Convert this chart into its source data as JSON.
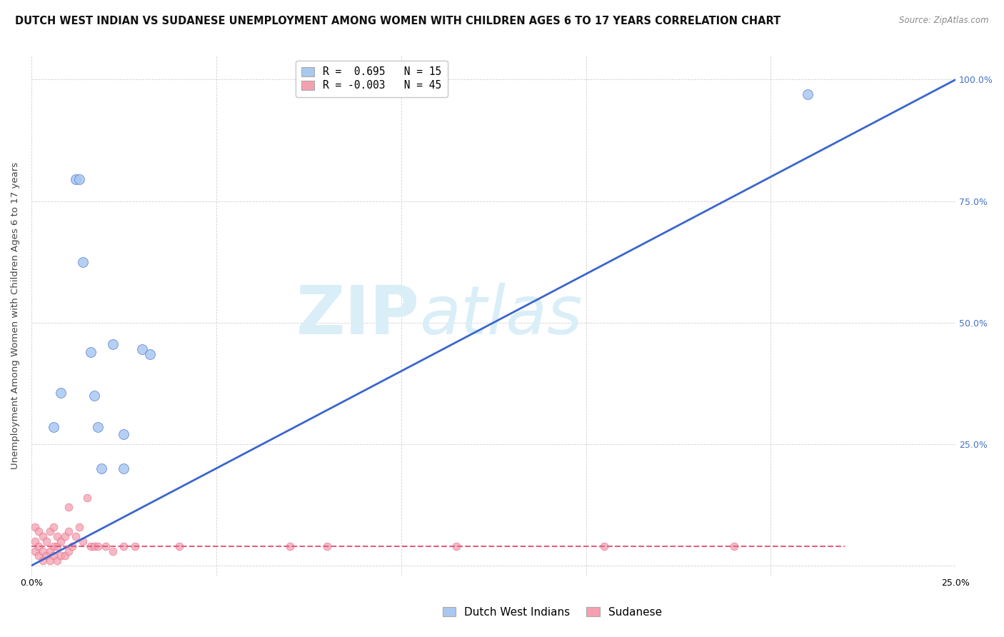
{
  "title": "DUTCH WEST INDIAN VS SUDANESE UNEMPLOYMENT AMONG WOMEN WITH CHILDREN AGES 6 TO 17 YEARS CORRELATION CHART",
  "source": "Source: ZipAtlas.com",
  "ylabel": "Unemployment Among Women with Children Ages 6 to 17 years",
  "xlim": [
    0.0,
    0.25
  ],
  "ylim": [
    -0.02,
    1.05
  ],
  "legend1_label": "R =  0.695   N = 15",
  "legend2_label": "R = -0.003   N = 45",
  "watermark_zip": "ZIP",
  "watermark_atlas": "atlas",
  "dutch_x": [
    0.006,
    0.008,
    0.012,
    0.013,
    0.014,
    0.016,
    0.017,
    0.018,
    0.019,
    0.022,
    0.025,
    0.025,
    0.03,
    0.032,
    0.21
  ],
  "dutch_y": [
    0.285,
    0.355,
    0.795,
    0.795,
    0.625,
    0.44,
    0.35,
    0.285,
    0.2,
    0.455,
    0.2,
    0.27,
    0.445,
    0.435,
    0.97
  ],
  "sudanese_x": [
    0.001,
    0.001,
    0.001,
    0.002,
    0.002,
    0.002,
    0.003,
    0.003,
    0.003,
    0.004,
    0.004,
    0.005,
    0.005,
    0.005,
    0.006,
    0.006,
    0.006,
    0.007,
    0.007,
    0.007,
    0.008,
    0.008,
    0.009,
    0.009,
    0.01,
    0.01,
    0.01,
    0.011,
    0.012,
    0.013,
    0.014,
    0.015,
    0.016,
    0.017,
    0.018,
    0.02,
    0.022,
    0.025,
    0.028,
    0.04,
    0.07,
    0.08,
    0.115,
    0.155,
    0.19
  ],
  "sudanese_y": [
    0.03,
    0.05,
    0.08,
    0.02,
    0.04,
    0.07,
    0.01,
    0.03,
    0.06,
    0.02,
    0.05,
    0.01,
    0.03,
    0.07,
    0.02,
    0.04,
    0.08,
    0.01,
    0.04,
    0.06,
    0.02,
    0.05,
    0.02,
    0.06,
    0.03,
    0.07,
    0.12,
    0.04,
    0.06,
    0.08,
    0.05,
    0.14,
    0.04,
    0.04,
    0.04,
    0.04,
    0.03,
    0.04,
    0.04,
    0.04,
    0.04,
    0.04,
    0.04,
    0.04,
    0.04
  ],
  "blue_line_x": [
    0.0,
    0.25
  ],
  "blue_line_y": [
    0.0,
    1.0
  ],
  "pink_line_x": [
    0.0,
    0.22
  ],
  "pink_line_y": [
    0.04,
    0.04
  ],
  "dot_color_dutch": "#a8c8f0",
  "dot_color_sudanese": "#f5a0b0",
  "dot_size_dutch": 100,
  "dot_size_sudanese": 60,
  "line_color_blue": "#3a66cc",
  "line_color_pink": "#e06080",
  "background_color": "#ffffff",
  "grid_color": "#cccccc",
  "title_fontsize": 10.5,
  "axis_fontsize": 9.5,
  "tick_fontsize": 9,
  "right_tick_color": "#4472c4"
}
